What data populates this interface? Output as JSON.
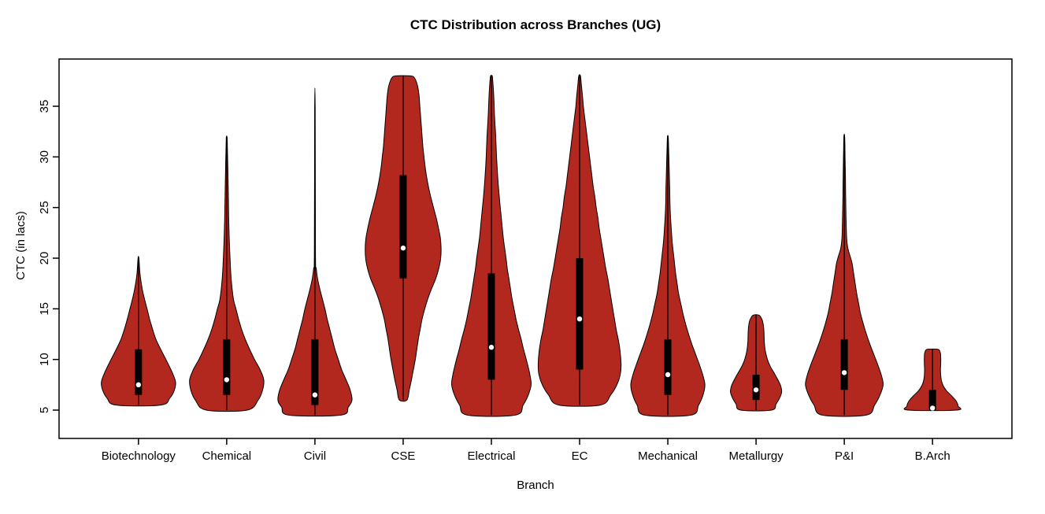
{
  "chart_data": {
    "type": "violin",
    "title": "CTC Distribution across Branches (UG)",
    "xlabel": "Branch",
    "ylabel": "CTC (in lacs)",
    "yticks": [
      5,
      10,
      15,
      20,
      25,
      30,
      35
    ],
    "ylim": [
      2.4,
      39.7
    ],
    "grid": false,
    "legend": "none",
    "fill_color": "#B2281E",
    "categories": [
      "Biotechnology",
      "Chemical",
      "Civil",
      "CSE",
      "Electrical",
      "EC",
      "Mechanical",
      "Metallurgy",
      "P&I",
      "B.Arch"
    ],
    "series": [
      {
        "name": "Biotechnology",
        "min": 5.5,
        "max": 20,
        "q1": 6.5,
        "q3": 11,
        "median": 7.5,
        "max_halfwidth": 0.42,
        "profile": [
          [
            5.5,
            0.6
          ],
          [
            6.2,
            0.85
          ],
          [
            7.0,
            0.97
          ],
          [
            7.8,
            1.0
          ],
          [
            8.8,
            0.9
          ],
          [
            10,
            0.74
          ],
          [
            11,
            0.6
          ],
          [
            12,
            0.47
          ],
          [
            13,
            0.38
          ],
          [
            14,
            0.3
          ],
          [
            15,
            0.23
          ],
          [
            16,
            0.16
          ],
          [
            17,
            0.1
          ],
          [
            18.5,
            0.04
          ],
          [
            20,
            0.012
          ]
        ]
      },
      {
        "name": "Chemical",
        "min": 5,
        "max": 32,
        "q1": 6.5,
        "q3": 12,
        "median": 8,
        "max_halfwidth": 0.42,
        "profile": [
          [
            5,
            0.55
          ],
          [
            6,
            0.85
          ],
          [
            7,
            0.97
          ],
          [
            8,
            1.0
          ],
          [
            9,
            0.9
          ],
          [
            10,
            0.75
          ],
          [
            11,
            0.62
          ],
          [
            12,
            0.5
          ],
          [
            13,
            0.4
          ],
          [
            14,
            0.32
          ],
          [
            15,
            0.25
          ],
          [
            16,
            0.18
          ],
          [
            18,
            0.12
          ],
          [
            20,
            0.09
          ],
          [
            23,
            0.06
          ],
          [
            26,
            0.045
          ],
          [
            29,
            0.03
          ],
          [
            31.5,
            0.015
          ],
          [
            32,
            0.008
          ]
        ]
      },
      {
        "name": "Civil",
        "min": 4.5,
        "max": 35,
        "q1": 5.5,
        "q3": 12,
        "median": 6.5,
        "max_halfwidth": 0.42,
        "profile": [
          [
            4.5,
            0.7
          ],
          [
            5.3,
            0.9
          ],
          [
            6,
            1.0
          ],
          [
            7,
            0.95
          ],
          [
            8,
            0.84
          ],
          [
            9,
            0.72
          ],
          [
            10,
            0.63
          ],
          [
            11,
            0.54
          ],
          [
            12,
            0.47
          ],
          [
            13,
            0.4
          ],
          [
            14,
            0.33
          ],
          [
            15,
            0.27
          ],
          [
            16,
            0.2
          ],
          [
            17,
            0.13
          ],
          [
            18,
            0.07
          ],
          [
            19,
            0.035
          ],
          [
            20.5,
            0.015
          ],
          [
            35,
            0.006
          ]
        ]
      },
      {
        "name": "CSE",
        "min": 6,
        "max": 38,
        "q1": 18,
        "q3": 28.2,
        "median": 21,
        "max_halfwidth": 0.43,
        "profile": [
          [
            6,
            0.1
          ],
          [
            7,
            0.16
          ],
          [
            8,
            0.22
          ],
          [
            9,
            0.27
          ],
          [
            10,
            0.32
          ],
          [
            11,
            0.36
          ],
          [
            12,
            0.4
          ],
          [
            13,
            0.45
          ],
          [
            14,
            0.5
          ],
          [
            15,
            0.57
          ],
          [
            16,
            0.65
          ],
          [
            17,
            0.75
          ],
          [
            18,
            0.86
          ],
          [
            19,
            0.94
          ],
          [
            20,
            0.99
          ],
          [
            21,
            1.0
          ],
          [
            22,
            0.98
          ],
          [
            23,
            0.93
          ],
          [
            24,
            0.87
          ],
          [
            25,
            0.8
          ],
          [
            26,
            0.73
          ],
          [
            27,
            0.67
          ],
          [
            28,
            0.62
          ],
          [
            29,
            0.58
          ],
          [
            30,
            0.55
          ],
          [
            31,
            0.52
          ],
          [
            32,
            0.5
          ],
          [
            33,
            0.48
          ],
          [
            34,
            0.46
          ],
          [
            35,
            0.44
          ],
          [
            36,
            0.42
          ],
          [
            37,
            0.38
          ],
          [
            37.8,
            0.3
          ],
          [
            38,
            0.18
          ]
        ]
      },
      {
        "name": "Electrical",
        "min": 4.5,
        "max": 38,
        "q1": 8,
        "q3": 18.5,
        "median": 11.2,
        "max_halfwidth": 0.45,
        "profile": [
          [
            4.5,
            0.6
          ],
          [
            5.5,
            0.8
          ],
          [
            6.5,
            0.93
          ],
          [
            7.5,
            1.0
          ],
          [
            8.5,
            0.97
          ],
          [
            10,
            0.88
          ],
          [
            11,
            0.81
          ],
          [
            12,
            0.75
          ],
          [
            13,
            0.68
          ],
          [
            14,
            0.62
          ],
          [
            15,
            0.57
          ],
          [
            16,
            0.52
          ],
          [
            17,
            0.48
          ],
          [
            18,
            0.44
          ],
          [
            19,
            0.4
          ],
          [
            20,
            0.37
          ],
          [
            22,
            0.3
          ],
          [
            24,
            0.25
          ],
          [
            26,
            0.2
          ],
          [
            28,
            0.16
          ],
          [
            30,
            0.13
          ],
          [
            32,
            0.11
          ],
          [
            34,
            0.08
          ],
          [
            36,
            0.06
          ],
          [
            37.5,
            0.035
          ],
          [
            38,
            0.02
          ]
        ]
      },
      {
        "name": "EC",
        "min": 5.5,
        "max": 38,
        "q1": 9,
        "q3": 20,
        "median": 14,
        "max_halfwidth": 0.47,
        "profile": [
          [
            5.5,
            0.5
          ],
          [
            6.5,
            0.75
          ],
          [
            7.5,
            0.9
          ],
          [
            8.5,
            0.98
          ],
          [
            9.5,
            1.0
          ],
          [
            11,
            0.97
          ],
          [
            12,
            0.93
          ],
          [
            13,
            0.88
          ],
          [
            14,
            0.84
          ],
          [
            15,
            0.8
          ],
          [
            16,
            0.76
          ],
          [
            17,
            0.72
          ],
          [
            18,
            0.68
          ],
          [
            19,
            0.63
          ],
          [
            20,
            0.59
          ],
          [
            21,
            0.55
          ],
          [
            22,
            0.51
          ],
          [
            23,
            0.47
          ],
          [
            24,
            0.44
          ],
          [
            25,
            0.4
          ],
          [
            26,
            0.37
          ],
          [
            27,
            0.33
          ],
          [
            28,
            0.3
          ],
          [
            29,
            0.27
          ],
          [
            30,
            0.24
          ],
          [
            31,
            0.21
          ],
          [
            32,
            0.18
          ],
          [
            33,
            0.15
          ],
          [
            34,
            0.12
          ],
          [
            35,
            0.09
          ],
          [
            36,
            0.07
          ],
          [
            37,
            0.045
          ],
          [
            38,
            0.02
          ]
        ]
      },
      {
        "name": "Mechanical",
        "min": 4.5,
        "max": 32,
        "q1": 6.5,
        "q3": 12,
        "median": 8.5,
        "max_halfwidth": 0.42,
        "profile": [
          [
            4.5,
            0.62
          ],
          [
            5.5,
            0.83
          ],
          [
            6.5,
            0.95
          ],
          [
            7.5,
            1.0
          ],
          [
            8.5,
            0.94
          ],
          [
            9.5,
            0.85
          ],
          [
            10.5,
            0.75
          ],
          [
            11.5,
            0.65
          ],
          [
            12.5,
            0.56
          ],
          [
            13.5,
            0.48
          ],
          [
            14.5,
            0.41
          ],
          [
            15.5,
            0.35
          ],
          [
            16.5,
            0.29
          ],
          [
            17.5,
            0.25
          ],
          [
            18.5,
            0.21
          ],
          [
            19.5,
            0.18
          ],
          [
            20.5,
            0.15
          ],
          [
            21.5,
            0.12
          ],
          [
            23,
            0.09
          ],
          [
            25,
            0.06
          ],
          [
            27,
            0.05
          ],
          [
            29,
            0.035
          ],
          [
            31,
            0.02
          ],
          [
            32,
            0.01
          ]
        ]
      },
      {
        "name": "Metallurgy",
        "min": 5,
        "max": 14.4,
        "q1": 6,
        "q3": 8.5,
        "median": 7,
        "max_halfwidth": 0.29,
        "profile": [
          [
            5,
            0.6
          ],
          [
            5.6,
            0.78
          ],
          [
            6.2,
            0.92
          ],
          [
            6.8,
            1.0
          ],
          [
            7.4,
            0.96
          ],
          [
            8,
            0.85
          ],
          [
            8.6,
            0.72
          ],
          [
            9.2,
            0.58
          ],
          [
            9.8,
            0.47
          ],
          [
            10.4,
            0.4
          ],
          [
            11,
            0.35
          ],
          [
            11.8,
            0.32
          ],
          [
            12.6,
            0.31
          ],
          [
            13.3,
            0.29
          ],
          [
            13.9,
            0.24
          ],
          [
            14.3,
            0.15
          ],
          [
            14.4,
            0.08
          ]
        ]
      },
      {
        "name": "P&I",
        "min": 4.5,
        "max": 32,
        "q1": 7,
        "q3": 12,
        "median": 8.7,
        "max_halfwidth": 0.44,
        "profile": [
          [
            4.5,
            0.56
          ],
          [
            5.5,
            0.78
          ],
          [
            6.5,
            0.92
          ],
          [
            7.5,
            1.0
          ],
          [
            8.5,
            0.95
          ],
          [
            9.5,
            0.86
          ],
          [
            10.5,
            0.76
          ],
          [
            11.5,
            0.66
          ],
          [
            12.5,
            0.57
          ],
          [
            13.5,
            0.49
          ],
          [
            14.5,
            0.42
          ],
          [
            15.5,
            0.37
          ],
          [
            16.5,
            0.32
          ],
          [
            17.5,
            0.28
          ],
          [
            18.5,
            0.24
          ],
          [
            19.5,
            0.2
          ],
          [
            20.2,
            0.15
          ],
          [
            21,
            0.09
          ],
          [
            22,
            0.06
          ],
          [
            24,
            0.045
          ],
          [
            26,
            0.035
          ],
          [
            28,
            0.03
          ],
          [
            30,
            0.02
          ],
          [
            32,
            0.01
          ]
        ]
      },
      {
        "name": "B.Arch",
        "min": 5,
        "max": 11,
        "q1": 5,
        "q3": 7,
        "median": 5.2,
        "max_halfwidth": 0.29,
        "profile": [
          [
            5,
            0.95
          ],
          [
            5.4,
            1.0
          ],
          [
            5.9,
            0.92
          ],
          [
            6.4,
            0.75
          ],
          [
            6.9,
            0.55
          ],
          [
            7.4,
            0.42
          ],
          [
            7.9,
            0.35
          ],
          [
            8.4,
            0.32
          ],
          [
            9,
            0.31
          ],
          [
            9.6,
            0.32
          ],
          [
            10.2,
            0.32
          ],
          [
            10.7,
            0.3
          ],
          [
            11,
            0.2
          ]
        ]
      }
    ]
  }
}
